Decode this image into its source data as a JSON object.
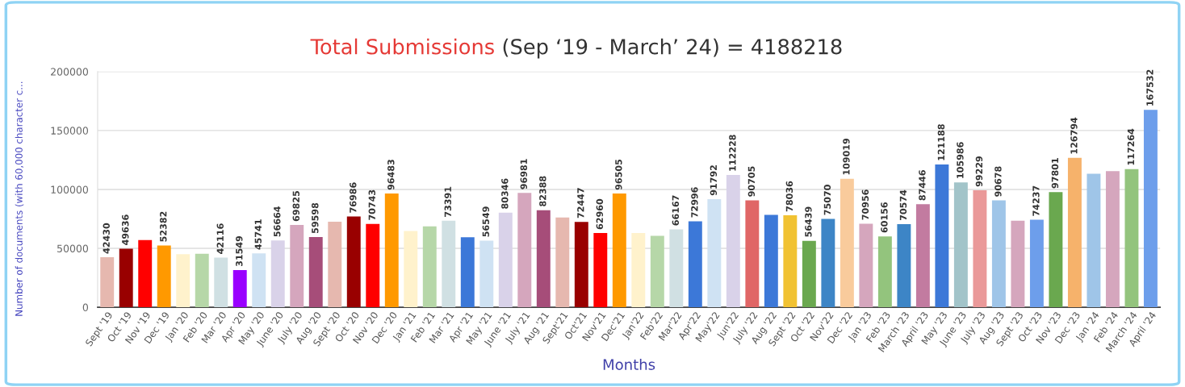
{
  "chart_data": {
    "type": "bar",
    "title": "Total Submissions",
    "subtitle": "(Sep ‘19 - March’ 24) = 4188218",
    "xlabel": "Months",
    "ylabel": "Number of documents (with 60,000 character c...",
    "categories": [
      "Sept '19",
      "Oct '19",
      "Nov '19",
      "Dec '19",
      "Jan '20",
      "Feb '20",
      "Mar '20",
      "Apr '20",
      "May '20",
      "June '20",
      "July '20",
      "Aug '20",
      "Sept '20",
      "Oct '20",
      "Nov '20",
      "Dec '20",
      "Jan '21",
      "Feb '21",
      "Mar '21",
      "Apr '21",
      "May '21",
      "June '21",
      "July '21",
      "Aug '21",
      "Sept'21",
      "Oct'21",
      "Nov'21",
      "Dec'21",
      "Jan'22",
      "Feb'22",
      "Mar'22",
      "Apr'22",
      "May'22",
      "Jun'22",
      "July '22",
      "Aug '22",
      "Sept '22",
      "Oct '22",
      "Nov'22",
      "Dec '22",
      "Jan '23",
      "Feb '23",
      "March '23",
      "April '23",
      "May '23",
      "June '23",
      "July '23",
      "Aug '23",
      "Sept '23",
      "Oct '23",
      "Nov '23",
      "Dec '23",
      "Jan '24",
      "Feb '24",
      "March '24",
      "April '24"
    ],
    "values": [
      42430,
      49636,
      57100,
      52382,
      45000,
      45400,
      42116,
      31549,
      45741,
      56664,
      69825,
      59598,
      72600,
      76986,
      70743,
      96483,
      64700,
      68700,
      73391,
      59400,
      56549,
      80346,
      96981,
      82388,
      76200,
      72447,
      62960,
      96505,
      63100,
      60600,
      66167,
      72996,
      91792,
      112228,
      90705,
      78500,
      78036,
      56439,
      75070,
      109019,
      70956,
      60156,
      70574,
      87446,
      121188,
      105986,
      99229,
      90678,
      73500,
      74237,
      97801,
      126794,
      113300,
      115500,
      117264,
      167532
    ],
    "value_labels": [
      "42430",
      "49636",
      null,
      "52382",
      null,
      null,
      "42116",
      "31549",
      "45741",
      "56664",
      "69825",
      "59598",
      null,
      "76986",
      "70743",
      "96483",
      null,
      null,
      "73391",
      null,
      "56549",
      "80346",
      "96981",
      "82388",
      null,
      "72447",
      "62960",
      "96505",
      null,
      null,
      "66167",
      "72996",
      "91792",
      "112228",
      "90705",
      null,
      "78036",
      "56439",
      "75070",
      "109019",
      "70956",
      "60156",
      "70574",
      "87446",
      "121188",
      "105986",
      "99229",
      "90678",
      null,
      "74237",
      "97801",
      "126794",
      null,
      null,
      "117264",
      "167532"
    ],
    "colors": [
      "#e6b8af",
      "#990000",
      "#ff0000",
      "#ff9900",
      "#fff2cc",
      "#b6d7a8",
      "#d0e0e3",
      "#9900ff",
      "#cfe2f3",
      "#d9d2e9",
      "#d5a6bd",
      "#a64d79",
      "#e6b8af",
      "#990000",
      "#ff0000",
      "#ff9900",
      "#fff2cc",
      "#b6d7a8",
      "#d0e0e3",
      "#3c78d8",
      "#cfe2f3",
      "#d9d2e9",
      "#d5a6bd",
      "#a64d79",
      "#e6b8af",
      "#990000",
      "#ff0000",
      "#ff9900",
      "#fff2cc",
      "#b6d7a8",
      "#d0e0e3",
      "#3c78d8",
      "#cfe2f3",
      "#d9d2e9",
      "#e06666",
      "#3c78d8",
      "#f1c232",
      "#6aa84f",
      "#3d85c6",
      "#f9cb9c",
      "#d5a6bd",
      "#93c47d",
      "#3d85c6",
      "#c27ba0",
      "#3c78d8",
      "#a2c4c9",
      "#ea9999",
      "#9fc5e8",
      "#d5a6bd",
      "#6d9eeb",
      "#6aa84f",
      "#f6b26b",
      "#9fc5e8",
      "#d5a6bd",
      "#93c47d",
      "#6d9eeb"
    ],
    "ylim": [
      0,
      200000
    ],
    "yticks": [
      0,
      50000,
      100000,
      150000,
      200000
    ],
    "grid": "y"
  }
}
